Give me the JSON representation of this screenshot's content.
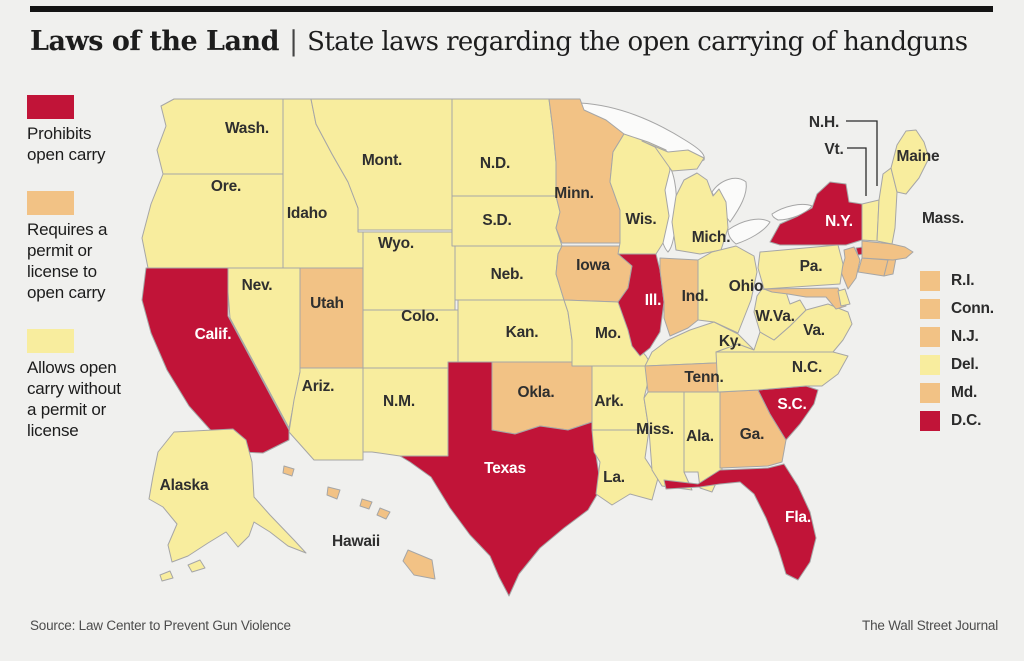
{
  "title": {
    "brand": "Laws of the Land",
    "separator": "|",
    "subtitle": "State laws regarding the open carrying of handguns"
  },
  "colors": {
    "prohibits": "#c11438",
    "permit": "#f2c285",
    "allows": "#f8ed9e",
    "background": "#f0f0ee",
    "border": "#a6a6a6",
    "water": "#fbfbfa",
    "label_dark": "#2f2f2f",
    "label_light": "#ffffff"
  },
  "legend": [
    {
      "category": "prohibits",
      "label": "Prohibits\nopen carry"
    },
    {
      "category": "permit",
      "label": "Requires a\npermit or\nlicense to\nopen carry"
    },
    {
      "category": "allows",
      "label": "Allows open\ncarry without\na permit or\nlicense"
    }
  ],
  "small_states": [
    {
      "label": "R.I.",
      "category": "permit"
    },
    {
      "label": "Conn.",
      "category": "permit"
    },
    {
      "label": "N.J.",
      "category": "permit"
    },
    {
      "label": "Del.",
      "category": "allows"
    },
    {
      "label": "Md.",
      "category": "permit"
    },
    {
      "label": "D.C.",
      "category": "prohibits"
    }
  ],
  "callouts": [
    {
      "id": "NH",
      "label": "N.H."
    },
    {
      "id": "VT",
      "label": "Vt."
    }
  ],
  "states": [
    {
      "id": "WA",
      "label": "Wash.",
      "category": "allows"
    },
    {
      "id": "OR",
      "label": "Ore.",
      "category": "allows"
    },
    {
      "id": "CA",
      "label": "Calif.",
      "category": "prohibits"
    },
    {
      "id": "NV",
      "label": "Nev.",
      "category": "allows"
    },
    {
      "id": "ID",
      "label": "Idaho",
      "category": "allows"
    },
    {
      "id": "MT",
      "label": "Mont.",
      "category": "allows"
    },
    {
      "id": "WY",
      "label": "Wyo.",
      "category": "allows"
    },
    {
      "id": "UT",
      "label": "Utah",
      "category": "permit"
    },
    {
      "id": "AZ",
      "label": "Ariz.",
      "category": "allows"
    },
    {
      "id": "NM",
      "label": "N.M.",
      "category": "allows"
    },
    {
      "id": "CO",
      "label": "Colo.",
      "category": "allows"
    },
    {
      "id": "ND",
      "label": "N.D.",
      "category": "allows"
    },
    {
      "id": "SD",
      "label": "S.D.",
      "category": "allows"
    },
    {
      "id": "NE",
      "label": "Neb.",
      "category": "allows"
    },
    {
      "id": "KS",
      "label": "Kan.",
      "category": "allows"
    },
    {
      "id": "OK",
      "label": "Okla.",
      "category": "permit"
    },
    {
      "id": "TX",
      "label": "Texas",
      "category": "prohibits"
    },
    {
      "id": "MN",
      "label": "Minn.",
      "category": "permit"
    },
    {
      "id": "IA",
      "label": "Iowa",
      "category": "permit"
    },
    {
      "id": "MO",
      "label": "Mo.",
      "category": "allows"
    },
    {
      "id": "AR",
      "label": "Ark.",
      "category": "allows"
    },
    {
      "id": "LA",
      "label": "La.",
      "category": "allows"
    },
    {
      "id": "WI",
      "label": "Wis.",
      "category": "allows"
    },
    {
      "id": "IL",
      "label": "Ill.",
      "category": "prohibits"
    },
    {
      "id": "IN",
      "label": "Ind.",
      "category": "permit"
    },
    {
      "id": "MI",
      "label": "Mich.",
      "category": "allows"
    },
    {
      "id": "OH",
      "label": "Ohio",
      "category": "allows"
    },
    {
      "id": "KY",
      "label": "Ky.",
      "category": "allows"
    },
    {
      "id": "TN",
      "label": "Tenn.",
      "category": "permit"
    },
    {
      "id": "MS",
      "label": "Miss.",
      "category": "allows"
    },
    {
      "id": "AL",
      "label": "Ala.",
      "category": "allows"
    },
    {
      "id": "GA",
      "label": "Ga.",
      "category": "permit"
    },
    {
      "id": "FL",
      "label": "Fla.",
      "category": "prohibits"
    },
    {
      "id": "SC",
      "label": "S.C.",
      "category": "prohibits"
    },
    {
      "id": "NC",
      "label": "N.C.",
      "category": "allows"
    },
    {
      "id": "VA",
      "label": "Va.",
      "category": "allows"
    },
    {
      "id": "WV",
      "label": "W.Va.",
      "category": "allows"
    },
    {
      "id": "MD",
      "label": "",
      "category": "permit"
    },
    {
      "id": "DE",
      "label": "",
      "category": "allows"
    },
    {
      "id": "NJ",
      "label": "",
      "category": "permit"
    },
    {
      "id": "PA",
      "label": "Pa.",
      "category": "allows"
    },
    {
      "id": "NY",
      "label": "N.Y.",
      "category": "prohibits"
    },
    {
      "id": "CT",
      "label": "",
      "category": "permit"
    },
    {
      "id": "RI",
      "label": "",
      "category": "permit"
    },
    {
      "id": "MA",
      "label": "Mass.",
      "category": "permit"
    },
    {
      "id": "VT",
      "label": "",
      "category": "allows"
    },
    {
      "id": "NH",
      "label": "",
      "category": "allows"
    },
    {
      "id": "ME",
      "label": "Maine",
      "category": "allows"
    },
    {
      "id": "AK",
      "label": "Alaska",
      "category": "allows"
    },
    {
      "id": "HI",
      "label": "Hawaii",
      "category": "permit"
    }
  ],
  "footer": {
    "source": "Source: Law Center to Prevent Gun Violence",
    "credit": "The Wall Street Journal"
  }
}
